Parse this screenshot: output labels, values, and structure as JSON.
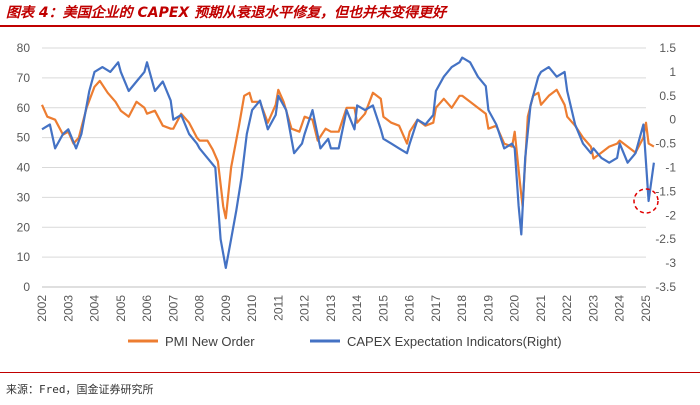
{
  "header": {
    "title": "图表 4：美国企业的 CAPEX 预期从衰退水平修复，但也并未变得更好"
  },
  "footer": {
    "source": "来源：Fred，国金证券研究所"
  },
  "colors": {
    "pmi": "#ED7D31",
    "capex": "#4472C4",
    "highlight": "#E00000",
    "grid": "#D9D9D9"
  },
  "chart_data": {
    "type": "line",
    "title": "美国企业的 CAPEX 预期从衰退水平修复，但也并未变得更好",
    "x_categories": [
      "2002",
      "2003",
      "2004",
      "2005",
      "2006",
      "2007",
      "2008",
      "2009",
      "2010",
      "2011",
      "2012",
      "2013",
      "2014",
      "2015",
      "2016",
      "2017",
      "2018",
      "2019",
      "2020",
      "2021",
      "2022",
      "2023",
      "2024",
      "2025"
    ],
    "y_left": {
      "range": [
        0,
        80
      ],
      "ticks": [
        "0",
        "10",
        "20",
        "30",
        "40",
        "50",
        "60",
        "70",
        "80"
      ]
    },
    "y_right": {
      "range": [
        -3.5,
        1.5
      ],
      "ticks": [
        "-3.5",
        "-3",
        "-2.5",
        "-2",
        "-1.5",
        "-1",
        "-0.5",
        "0",
        "0.5",
        "1",
        "1.5"
      ]
    },
    "legend": {
      "position": "bottom",
      "items": [
        "PMI New Order",
        "CAPEX Expectation Indicators(Right)"
      ]
    },
    "annotation": "dashed red circle highlighting early-2025 drop of CAPEX expectation",
    "series": [
      {
        "name": "PMI New Order",
        "axis": "left",
        "points": [
          [
            2002.0,
            61
          ],
          [
            2002.2,
            57
          ],
          [
            2002.5,
            56
          ],
          [
            2002.8,
            51
          ],
          [
            2003.0,
            52
          ],
          [
            2003.2,
            48
          ],
          [
            2003.4,
            50
          ],
          [
            2003.7,
            60
          ],
          [
            2004.0,
            67
          ],
          [
            2004.2,
            69
          ],
          [
            2004.5,
            65
          ],
          [
            2004.8,
            62
          ],
          [
            2005.0,
            59
          ],
          [
            2005.3,
            57
          ],
          [
            2005.6,
            62
          ],
          [
            2005.9,
            60
          ],
          [
            2006.0,
            58
          ],
          [
            2006.3,
            59
          ],
          [
            2006.6,
            54
          ],
          [
            2006.9,
            53
          ],
          [
            2007.0,
            53
          ],
          [
            2007.3,
            58
          ],
          [
            2007.6,
            55
          ],
          [
            2007.9,
            50
          ],
          [
            2008.0,
            49
          ],
          [
            2008.3,
            49
          ],
          [
            2008.5,
            46
          ],
          [
            2008.7,
            42
          ],
          [
            2008.9,
            27
          ],
          [
            2009.0,
            23
          ],
          [
            2009.2,
            40
          ],
          [
            2009.5,
            54
          ],
          [
            2009.7,
            64
          ],
          [
            2009.9,
            65
          ],
          [
            2010.0,
            62
          ],
          [
            2010.3,
            62
          ],
          [
            2010.6,
            55
          ],
          [
            2010.9,
            61
          ],
          [
            2011.0,
            66
          ],
          [
            2011.2,
            62
          ],
          [
            2011.5,
            53
          ],
          [
            2011.8,
            52
          ],
          [
            2012.0,
            57
          ],
          [
            2012.3,
            56
          ],
          [
            2012.5,
            49
          ],
          [
            2012.8,
            53
          ],
          [
            2013.0,
            52
          ],
          [
            2013.3,
            52
          ],
          [
            2013.6,
            60
          ],
          [
            2013.9,
            60
          ],
          [
            2014.0,
            55
          ],
          [
            2014.3,
            58
          ],
          [
            2014.6,
            65
          ],
          [
            2014.9,
            63
          ],
          [
            2015.0,
            57
          ],
          [
            2015.3,
            55
          ],
          [
            2015.6,
            54
          ],
          [
            2015.9,
            48
          ],
          [
            2016.0,
            52
          ],
          [
            2016.3,
            56
          ],
          [
            2016.6,
            54
          ],
          [
            2016.9,
            55
          ],
          [
            2017.0,
            60
          ],
          [
            2017.3,
            63
          ],
          [
            2017.6,
            60
          ],
          [
            2017.9,
            64
          ],
          [
            2018.0,
            64
          ],
          [
            2018.3,
            62
          ],
          [
            2018.6,
            60
          ],
          [
            2018.9,
            58
          ],
          [
            2019.0,
            53
          ],
          [
            2019.3,
            54
          ],
          [
            2019.6,
            48
          ],
          [
            2019.9,
            47
          ],
          [
            2020.0,
            52
          ],
          [
            2020.2,
            35
          ],
          [
            2020.3,
            27
          ],
          [
            2020.5,
            57
          ],
          [
            2020.7,
            64
          ],
          [
            2020.9,
            65
          ],
          [
            2021.0,
            61
          ],
          [
            2021.3,
            64
          ],
          [
            2021.6,
            66
          ],
          [
            2021.9,
            61
          ],
          [
            2022.0,
            57
          ],
          [
            2022.3,
            54
          ],
          [
            2022.6,
            50
          ],
          [
            2022.9,
            47
          ],
          [
            2023.0,
            43
          ],
          [
            2023.3,
            45
          ],
          [
            2023.6,
            47
          ],
          [
            2023.9,
            48
          ],
          [
            2024.0,
            49
          ],
          [
            2024.3,
            47
          ],
          [
            2024.6,
            45
          ],
          [
            2024.9,
            50
          ],
          [
            2025.0,
            55
          ],
          [
            2025.1,
            48
          ],
          [
            2025.3,
            47
          ]
        ]
      },
      {
        "name": "CAPEX Expectation Indicators(Right)",
        "axis": "right",
        "points": [
          [
            2002.0,
            -0.2
          ],
          [
            2002.3,
            -0.1
          ],
          [
            2002.5,
            -0.6
          ],
          [
            2002.8,
            -0.3
          ],
          [
            2003.0,
            -0.2
          ],
          [
            2003.3,
            -0.6
          ],
          [
            2003.5,
            -0.3
          ],
          [
            2003.8,
            0.6
          ],
          [
            2004.0,
            1.0
          ],
          [
            2004.3,
            1.1
          ],
          [
            2004.6,
            1.0
          ],
          [
            2004.9,
            1.2
          ],
          [
            2005.0,
            1.0
          ],
          [
            2005.3,
            0.6
          ],
          [
            2005.6,
            0.8
          ],
          [
            2005.9,
            1.0
          ],
          [
            2006.0,
            1.2
          ],
          [
            2006.3,
            0.6
          ],
          [
            2006.6,
            0.8
          ],
          [
            2006.9,
            0.4
          ],
          [
            2007.0,
            0.0
          ],
          [
            2007.3,
            0.1
          ],
          [
            2007.6,
            -0.3
          ],
          [
            2007.9,
            -0.5
          ],
          [
            2008.0,
            -0.6
          ],
          [
            2008.3,
            -0.8
          ],
          [
            2008.6,
            -1.0
          ],
          [
            2008.8,
            -2.5
          ],
          [
            2009.0,
            -3.1
          ],
          [
            2009.2,
            -2.5
          ],
          [
            2009.4,
            -1.9
          ],
          [
            2009.6,
            -1.2
          ],
          [
            2009.8,
            -0.3
          ],
          [
            2010.0,
            0.2
          ],
          [
            2010.3,
            0.4
          ],
          [
            2010.6,
            -0.2
          ],
          [
            2010.9,
            0.1
          ],
          [
            2011.0,
            0.5
          ],
          [
            2011.3,
            0.2
          ],
          [
            2011.6,
            -0.7
          ],
          [
            2011.9,
            -0.5
          ],
          [
            2012.0,
            -0.3
          ],
          [
            2012.3,
            0.2
          ],
          [
            2012.6,
            -0.6
          ],
          [
            2012.9,
            -0.4
          ],
          [
            2013.0,
            -0.6
          ],
          [
            2013.3,
            -0.6
          ],
          [
            2013.6,
            0.2
          ],
          [
            2013.9,
            -0.2
          ],
          [
            2014.0,
            0.3
          ],
          [
            2014.3,
            0.2
          ],
          [
            2014.6,
            0.3
          ],
          [
            2014.9,
            -0.2
          ],
          [
            2015.0,
            -0.4
          ],
          [
            2015.3,
            -0.5
          ],
          [
            2015.6,
            -0.6
          ],
          [
            2015.9,
            -0.7
          ],
          [
            2016.0,
            -0.5
          ],
          [
            2016.3,
            0.0
          ],
          [
            2016.6,
            -0.1
          ],
          [
            2016.9,
            0.1
          ],
          [
            2017.0,
            0.6
          ],
          [
            2017.3,
            0.9
          ],
          [
            2017.6,
            1.1
          ],
          [
            2017.9,
            1.2
          ],
          [
            2018.0,
            1.3
          ],
          [
            2018.3,
            1.2
          ],
          [
            2018.6,
            0.9
          ],
          [
            2018.9,
            0.7
          ],
          [
            2019.0,
            0.2
          ],
          [
            2019.3,
            -0.1
          ],
          [
            2019.6,
            -0.6
          ],
          [
            2019.9,
            -0.5
          ],
          [
            2020.0,
            -0.6
          ],
          [
            2020.15,
            -1.8
          ],
          [
            2020.25,
            -2.4
          ],
          [
            2020.4,
            -0.8
          ],
          [
            2020.6,
            0.3
          ],
          [
            2020.9,
            0.9
          ],
          [
            2021.0,
            1.0
          ],
          [
            2021.3,
            1.1
          ],
          [
            2021.6,
            0.9
          ],
          [
            2021.9,
            1.0
          ],
          [
            2022.0,
            0.6
          ],
          [
            2022.3,
            -0.1
          ],
          [
            2022.6,
            -0.5
          ],
          [
            2022.9,
            -0.7
          ],
          [
            2023.0,
            -0.6
          ],
          [
            2023.3,
            -0.8
          ],
          [
            2023.6,
            -0.9
          ],
          [
            2023.9,
            -0.8
          ],
          [
            2024.0,
            -0.5
          ],
          [
            2024.3,
            -0.9
          ],
          [
            2024.6,
            -0.7
          ],
          [
            2024.9,
            -0.1
          ],
          [
            2025.0,
            -0.9
          ],
          [
            2025.1,
            -1.7
          ],
          [
            2025.3,
            -0.9
          ]
        ]
      }
    ]
  }
}
